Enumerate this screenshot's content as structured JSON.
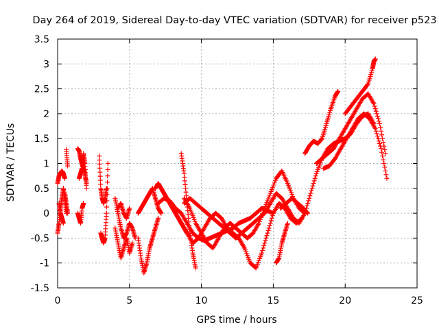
{
  "chart_data": {
    "type": "scatter",
    "title": "Day 264 of 2019, Sidereal Day-to-day VTEC variation (SDTVAR) for receiver p523",
    "xlabel": "GPS time / hours",
    "ylabel": "SDTVAR / TECUs",
    "xlim": [
      0,
      25
    ],
    "ylim": [
      -1.5,
      3.5
    ],
    "xticks": [
      0,
      5,
      10,
      15,
      20,
      25
    ],
    "xtick_labels": [
      "0",
      "5",
      "10",
      "15",
      "20",
      "25"
    ],
    "yticks": [
      -1.5,
      -1,
      -0.5,
      0,
      0.5,
      1,
      1.5,
      2,
      2.5,
      3,
      3.5
    ],
    "ytick_labels": [
      "-1.5",
      "-1",
      "-0.5",
      "0",
      "0.5",
      "1",
      "1.5",
      "2",
      "2.5",
      "3",
      "3.5"
    ],
    "grid": true,
    "marker": "+",
    "series": [
      {
        "name": "SDTVAR",
        "color": "#ff0000",
        "tracks": [
          {
            "x": [
              0.0,
              0.1,
              0.2,
              0.3,
              0.4,
              0.5
            ],
            "y": [
              0.6,
              0.75,
              0.8,
              0.85,
              0.8,
              0.7
            ]
          },
          {
            "x": [
              0.0,
              0.1,
              0.2,
              0.3,
              0.4,
              0.5,
              0.6
            ],
            "y": [
              -0.4,
              -0.2,
              0.1,
              0.3,
              0.5,
              0.3,
              0.0
            ]
          },
          {
            "x": [
              0.1,
              0.2,
              0.3,
              0.4
            ],
            "y": [
              0.2,
              0.0,
              -0.1,
              -0.2
            ]
          },
          {
            "x": [
              0.6,
              0.7
            ],
            "y": [
              1.28,
              0.95
            ]
          },
          {
            "x": [
              0.5,
              0.6,
              0.7
            ],
            "y": [
              0.4,
              0.2,
              0.0
            ]
          },
          {
            "x": [
              1.4,
              1.5,
              1.6,
              1.7,
              1.8,
              1.9,
              2.0
            ],
            "y": [
              1.3,
              1.25,
              1.1,
              1.0,
              0.9,
              0.8,
              0.6
            ]
          },
          {
            "x": [
              1.5,
              1.6,
              1.7,
              1.8,
              1.9,
              2.0
            ],
            "y": [
              0.7,
              0.8,
              0.9,
              1.2,
              1.0,
              0.5
            ]
          },
          {
            "x": [
              1.4,
              1.5,
              1.6,
              1.7,
              1.8
            ],
            "y": [
              0.0,
              -0.1,
              -0.2,
              0.1,
              0.2
            ]
          },
          {
            "x": [
              2.9,
              3.0,
              3.1,
              3.2,
              3.3,
              3.4
            ],
            "y": [
              1.15,
              0.5,
              0.3,
              0.2,
              0.3,
              0.5
            ]
          },
          {
            "x": [
              3.0,
              3.1,
              3.2,
              3.3,
              3.4,
              3.5
            ],
            "y": [
              -0.4,
              -0.5,
              -0.6,
              -0.5,
              0.0,
              1.0
            ]
          },
          {
            "x": [
              4.0,
              4.2,
              4.4,
              4.6,
              4.8,
              5.0,
              5.2,
              5.4
            ],
            "y": [
              0.3,
              0.0,
              -0.3,
              -0.5,
              -0.4,
              -0.2,
              -0.3,
              -0.5
            ]
          },
          {
            "x": [
              4.0,
              4.2,
              4.4,
              4.6,
              4.8,
              5.0,
              5.2
            ],
            "y": [
              -0.3,
              -0.6,
              -0.9,
              -0.7,
              -0.5,
              -0.8,
              -0.6
            ]
          },
          {
            "x": [
              4.2,
              4.4,
              4.6,
              4.8,
              5.0
            ],
            "y": [
              0.1,
              0.2,
              0.0,
              -0.1,
              0.1
            ]
          },
          {
            "x": [
              5.6,
              5.8,
              6.0,
              6.2,
              6.4,
              6.6,
              6.8,
              7.0
            ],
            "y": [
              -0.5,
              -0.9,
              -1.2,
              -1.0,
              -0.7,
              -0.5,
              -0.3,
              -0.1
            ]
          },
          {
            "x": [
              5.6,
              5.8,
              6.0,
              6.2,
              6.4,
              6.6,
              6.8,
              7.0,
              7.2
            ],
            "y": [
              0.0,
              0.1,
              0.2,
              0.3,
              0.4,
              0.5,
              0.3,
              0.1,
              0.0
            ]
          },
          {
            "x": [
              6.8,
              7.0,
              7.2,
              7.4,
              7.6,
              7.8,
              8.0,
              8.2,
              8.4,
              8.6,
              8.8,
              9.0
            ],
            "y": [
              0.5,
              0.6,
              0.5,
              0.4,
              0.3,
              0.2,
              0.1,
              0.0,
              -0.1,
              -0.2,
              -0.3,
              -0.4
            ]
          },
          {
            "x": [
              7.0,
              7.4,
              7.8,
              8.2,
              8.6,
              9.0,
              9.4,
              9.8,
              10.2,
              10.6,
              11.0,
              11.4,
              11.8,
              12.2,
              12.6,
              13.0,
              13.4,
              13.8,
              14.2,
              14.6,
              15.0
            ],
            "y": [
              0.2,
              0.3,
              0.25,
              0.1,
              0.0,
              -0.2,
              -0.4,
              -0.5,
              -0.55,
              -0.5,
              -0.45,
              -0.4,
              -0.35,
              -0.3,
              -0.2,
              -0.15,
              -0.1,
              0.0,
              0.1,
              0.05,
              0.0
            ]
          },
          {
            "x": [
              8.6,
              8.8,
              9.0,
              9.2,
              9.4,
              9.6
            ],
            "y": [
              1.2,
              0.8,
              0.2,
              -0.4,
              -0.8,
              -1.1
            ]
          },
          {
            "x": [
              8.6,
              9.0,
              9.4,
              9.8,
              10.2,
              10.6,
              11.0,
              11.4,
              11.8,
              12.2,
              12.6,
              13.0,
              13.4,
              13.8,
              14.2,
              14.6,
              15.0,
              15.4,
              15.8,
              16.2,
              16.6,
              17.0
            ],
            "y": [
              -0.2,
              -0.4,
              -0.6,
              -0.5,
              -0.3,
              -0.1,
              0.0,
              -0.1,
              -0.3,
              -0.4,
              -0.5,
              -0.7,
              -1.0,
              -1.1,
              -0.8,
              -0.4,
              0.0,
              0.2,
              0.1,
              -0.1,
              -0.2,
              -0.1
            ]
          },
          {
            "x": [
              8.8,
              9.2,
              9.6,
              10.0,
              10.4,
              10.8,
              11.2,
              11.6,
              12.0,
              12.4,
              12.8,
              13.2,
              13.6,
              14.0,
              14.4,
              14.8,
              15.2,
              15.6,
              16.0,
              16.4,
              16.8,
              17.2
            ],
            "y": [
              0.3,
              0.1,
              -0.2,
              -0.4,
              -0.6,
              -0.7,
              -0.5,
              -0.3,
              -0.2,
              -0.3,
              -0.4,
              -0.5,
              -0.4,
              -0.2,
              0.1,
              0.4,
              0.7,
              0.85,
              0.6,
              0.3,
              0.1,
              0.0
            ]
          },
          {
            "x": [
              8.8,
              9.2,
              9.6,
              10.0,
              10.4,
              10.8,
              11.2,
              11.6,
              12.0,
              12.4,
              12.8,
              13.2,
              13.6,
              14.0,
              14.4,
              14.8,
              15.2,
              15.6,
              16.0,
              16.4,
              16.8,
              17.2
            ],
            "y": [
              0.2,
              0.3,
              0.2,
              0.1,
              0.0,
              -0.1,
              -0.2,
              -0.3,
              -0.4,
              -0.5,
              -0.4,
              -0.3,
              -0.2,
              -0.1,
              0.0,
              0.2,
              0.4,
              0.3,
              0.1,
              -0.1,
              -0.2,
              0.0
            ]
          },
          {
            "x": [
              15.2,
              15.4,
              15.6,
              15.8,
              16.0
            ],
            "y": [
              -1.0,
              -0.9,
              -0.6,
              -0.4,
              -0.2
            ]
          },
          {
            "x": [
              15.5,
              15.9,
              16.3,
              16.7,
              17.1,
              17.4
            ],
            "y": [
              0.1,
              0.2,
              0.3,
              0.2,
              0.1,
              0.0
            ]
          },
          {
            "x": [
              17.2,
              17.5,
              17.8,
              18.1,
              18.4,
              18.7,
              19.0,
              19.3,
              19.5
            ],
            "y": [
              1.2,
              1.35,
              1.45,
              1.4,
              1.5,
              1.8,
              2.1,
              2.35,
              2.45
            ]
          },
          {
            "x": [
              17.2,
              17.6,
              18.0,
              18.4,
              18.8,
              19.2,
              19.6,
              20.0,
              20.4,
              20.8,
              21.2,
              21.6,
              22.0
            ],
            "y": [
              0.0,
              0.4,
              0.8,
              1.1,
              1.3,
              1.4,
              1.45,
              1.5,
              1.6,
              1.8,
              1.95,
              2.0,
              1.8
            ]
          },
          {
            "x": [
              18.0,
              18.4,
              18.8,
              19.2,
              19.6,
              20.0,
              20.4,
              20.8,
              21.2,
              21.6,
              22.0,
              22.4,
              22.8
            ],
            "y": [
              1.0,
              1.1,
              1.2,
              1.3,
              1.5,
              1.7,
              1.9,
              2.1,
              2.3,
              2.4,
              2.2,
              1.8,
              1.2
            ]
          },
          {
            "x": [
              18.5,
              18.9,
              19.3,
              19.7,
              20.1,
              20.5,
              20.9,
              21.3,
              21.7,
              22.1,
              22.5,
              22.9
            ],
            "y": [
              0.9,
              0.95,
              1.1,
              1.3,
              1.5,
              1.7,
              1.9,
              2.0,
              1.9,
              1.7,
              1.3,
              0.7
            ]
          },
          {
            "x": [
              20.0,
              20.4,
              20.8,
              21.2,
              21.6,
              21.9,
              22.0,
              22.1
            ],
            "y": [
              2.0,
              2.15,
              2.3,
              2.45,
              2.6,
              2.9,
              3.05,
              3.1
            ]
          }
        ]
      }
    ]
  }
}
